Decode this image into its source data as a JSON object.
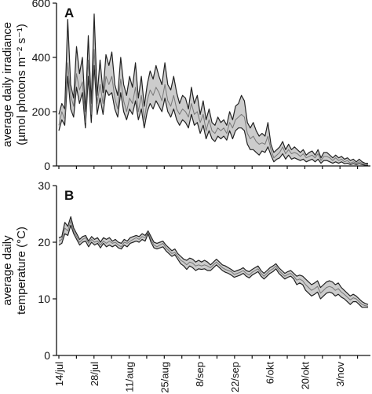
{
  "chart_data": [
    {
      "panel": "A",
      "type": "area",
      "ylabel": "average daily irradiance",
      "ylabel_units": "(µmol photons m⁻² s⁻¹)",
      "ylim": [
        0,
        600
      ],
      "yticks": [
        "0",
        "200",
        "400",
        "600"
      ],
      "x_start": "14/jul",
      "x_end": "16/nov",
      "series": [
        {
          "role": "upper",
          "values": [
            190,
            230,
            210,
            540,
            300,
            250,
            440,
            340,
            400,
            200,
            480,
            230,
            560,
            260,
            390,
            270,
            410,
            370,
            420,
            300,
            260,
            400,
            300,
            260,
            330,
            290,
            380,
            250,
            330,
            220,
            300,
            350,
            320,
            370,
            330,
            300,
            380,
            300,
            280,
            330,
            270,
            230,
            260,
            250,
            210,
            290,
            230,
            260,
            190,
            240,
            170,
            210,
            160,
            150,
            180,
            160,
            170,
            150,
            200,
            170,
            220,
            230,
            260,
            240,
            160,
            140,
            160,
            130,
            110,
            120,
            110,
            160,
            80,
            50,
            60,
            70,
            90,
            60,
            80,
            60,
            70,
            60,
            50,
            60,
            40,
            50,
            55,
            40,
            60,
            30,
            50,
            50,
            40,
            30,
            40,
            30,
            35,
            25,
            30,
            20,
            25,
            15,
            25,
            15,
            10,
            10
          ]
        },
        {
          "role": "mean",
          "values": [
            150,
            200,
            170,
            380,
            260,
            220,
            340,
            280,
            310,
            160,
            390,
            190,
            430,
            230,
            300,
            230,
            330,
            300,
            330,
            250,
            210,
            320,
            240,
            200,
            250,
            230,
            290,
            200,
            260,
            170,
            240,
            280,
            260,
            290,
            270,
            240,
            300,
            240,
            220,
            260,
            210,
            190,
            210,
            200,
            180,
            230,
            190,
            200,
            160,
            190,
            130,
            170,
            130,
            120,
            140,
            130,
            140,
            120,
            160,
            140,
            170,
            180,
            190,
            180,
            120,
            100,
            110,
            90,
            80,
            85,
            80,
            110,
            60,
            30,
            40,
            50,
            70,
            45,
            60,
            45,
            50,
            45,
            35,
            45,
            30,
            35,
            40,
            30,
            45,
            20,
            35,
            35,
            30,
            20,
            30,
            20,
            25,
            15,
            20,
            10,
            15,
            10,
            15,
            10,
            8,
            5
          ]
        },
        {
          "role": "lower",
          "values": [
            130,
            170,
            150,
            330,
            210,
            180,
            290,
            230,
            270,
            140,
            330,
            160,
            370,
            190,
            250,
            190,
            280,
            260,
            270,
            210,
            180,
            270,
            200,
            170,
            210,
            190,
            240,
            170,
            210,
            140,
            200,
            230,
            210,
            240,
            220,
            200,
            250,
            200,
            180,
            210,
            170,
            150,
            170,
            160,
            140,
            190,
            150,
            160,
            120,
            150,
            100,
            130,
            100,
            90,
            110,
            100,
            110,
            95,
            130,
            100,
            130,
            140,
            140,
            130,
            80,
            60,
            60,
            50,
            40,
            55,
            50,
            70,
            40,
            15,
            25,
            30,
            45,
            25,
            40,
            25,
            30,
            25,
            20,
            25,
            15,
            20,
            25,
            15,
            25,
            10,
            20,
            20,
            15,
            10,
            15,
            10,
            15,
            8,
            10,
            5,
            8,
            5,
            8,
            5,
            3,
            2
          ]
        }
      ]
    },
    {
      "panel": "B",
      "type": "area",
      "ylabel": "average daily",
      "ylabel_units": "temperature (°C)",
      "ylim": [
        0,
        30
      ],
      "yticks": [
        "0",
        "10",
        "20",
        "30"
      ],
      "x_start": "14/jul",
      "x_end": "16/nov",
      "xticks": [
        "14/jul",
        "28/jul",
        "11/aug",
        "25/aug",
        "8/sep",
        "22/sep",
        "6/okt",
        "20/okt",
        "3/nov"
      ],
      "series": [
        {
          "role": "upper",
          "values": [
            20.8,
            21.0,
            23.5,
            22.8,
            24.5,
            22.5,
            21.5,
            20.5,
            21.0,
            21.2,
            20.2,
            21.0,
            20.5,
            20.8,
            20.0,
            20.8,
            20.5,
            20.8,
            20.2,
            20.5,
            20.0,
            19.8,
            20.5,
            20.2,
            20.8,
            21.0,
            21.2,
            21.0,
            21.5,
            21.2,
            22.0,
            21.0,
            20.0,
            19.8,
            20.0,
            20.2,
            19.5,
            19.0,
            18.5,
            18.8,
            18.0,
            17.5,
            17.0,
            16.8,
            17.2,
            17.0,
            16.5,
            16.8,
            16.5,
            16.8,
            16.5,
            16.0,
            16.5,
            17.0,
            16.5,
            16.0,
            15.8,
            15.5,
            15.2,
            14.8,
            15.0,
            15.2,
            15.5,
            15.0,
            14.8,
            15.2,
            15.5,
            15.8,
            15.0,
            14.5,
            15.0,
            15.5,
            15.8,
            16.2,
            15.5,
            15.0,
            14.5,
            14.8,
            15.0,
            14.5,
            14.0,
            14.2,
            14.0,
            13.5,
            13.0,
            12.5,
            12.8,
            13.2,
            12.0,
            12.5,
            13.0,
            13.2,
            13.0,
            12.5,
            12.8,
            12.0,
            11.5,
            11.0,
            10.5,
            10.8,
            10.5,
            10.0,
            9.5,
            9.2,
            9.0
          ]
        },
        {
          "role": "mean",
          "values": [
            20.2,
            20.5,
            22.5,
            22.0,
            23.8,
            22.0,
            21.0,
            20.0,
            20.5,
            20.8,
            19.8,
            20.5,
            20.0,
            20.2,
            19.5,
            20.2,
            19.8,
            20.2,
            19.8,
            20.0,
            19.5,
            19.2,
            20.0,
            19.8,
            20.2,
            20.5,
            20.8,
            20.5,
            21.0,
            20.8,
            21.8,
            20.5,
            19.5,
            19.2,
            19.5,
            19.8,
            19.0,
            18.5,
            18.0,
            18.2,
            17.5,
            16.8,
            16.5,
            16.0,
            16.5,
            16.3,
            15.8,
            16.0,
            15.8,
            16.0,
            15.8,
            15.5,
            16.0,
            16.5,
            16.0,
            15.5,
            15.2,
            15.0,
            14.8,
            14.3,
            14.5,
            14.7,
            15.0,
            14.5,
            14.2,
            14.7,
            15.0,
            15.3,
            14.5,
            14.0,
            14.5,
            15.0,
            15.3,
            15.8,
            15.0,
            14.5,
            14.0,
            14.3,
            14.5,
            14.0,
            13.3,
            13.5,
            13.2,
            12.5,
            12.0,
            11.5,
            11.8,
            12.2,
            11.0,
            11.5,
            12.0,
            12.2,
            12.0,
            11.5,
            11.8,
            11.2,
            10.8,
            10.3,
            9.8,
            10.2,
            10.0,
            9.5,
            9.0,
            8.8,
            8.7
          ]
        },
        {
          "role": "lower",
          "values": [
            19.5,
            19.8,
            21.5,
            21.2,
            23.0,
            21.5,
            20.5,
            19.5,
            20.0,
            20.2,
            19.2,
            20.0,
            19.5,
            19.8,
            19.0,
            19.8,
            19.2,
            19.5,
            19.2,
            19.5,
            19.0,
            18.8,
            19.5,
            19.2,
            19.8,
            20.0,
            20.2,
            20.0,
            20.5,
            20.2,
            21.5,
            20.0,
            19.0,
            18.8,
            19.0,
            19.2,
            18.5,
            18.0,
            17.5,
            17.8,
            17.0,
            16.2,
            15.8,
            15.2,
            15.8,
            15.5,
            15.0,
            15.3,
            15.2,
            15.3,
            15.0,
            15.0,
            15.5,
            16.0,
            15.5,
            15.0,
            14.7,
            14.5,
            14.2,
            13.8,
            14.0,
            14.2,
            14.5,
            14.0,
            13.7,
            14.2,
            14.5,
            14.8,
            14.0,
            13.5,
            14.0,
            14.5,
            14.8,
            15.3,
            14.5,
            14.0,
            13.5,
            13.8,
            14.0,
            13.5,
            12.5,
            12.8,
            12.5,
            11.5,
            11.0,
            10.5,
            10.8,
            11.2,
            10.0,
            10.5,
            11.0,
            11.2,
            11.0,
            10.5,
            10.8,
            10.3,
            10.0,
            9.5,
            9.0,
            9.5,
            9.5,
            9.0,
            8.5,
            8.5,
            8.5
          ]
        }
      ]
    }
  ]
}
